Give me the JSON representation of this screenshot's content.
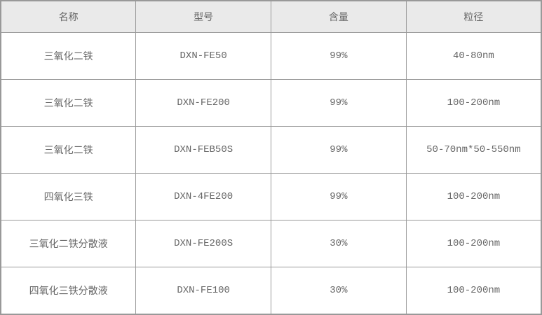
{
  "table": {
    "columns": [
      "名称",
      "型号",
      "含量",
      "粒径"
    ],
    "rows": [
      [
        "三氧化二铁",
        "DXN-FE50",
        "99%",
        "40-80nm"
      ],
      [
        "三氧化二铁",
        "DXN-FE200",
        "99%",
        "100-200nm"
      ],
      [
        "三氧化二铁",
        "DXN-FEB50S",
        "99%",
        "50-70nm*50-550nm"
      ],
      [
        "四氧化三铁",
        "DXN-4FE200",
        "99%",
        "100-200nm"
      ],
      [
        "三氧化二铁分散液",
        "DXN-FE200S",
        "30%",
        "100-200nm"
      ],
      [
        "四氧化三铁分散液",
        "DXN-FE100",
        "30%",
        "100-200nm"
      ]
    ],
    "colors": {
      "header_bg": "#eaeaea",
      "border": "#999999",
      "text": "#666666",
      "row_bg": "#ffffff"
    }
  }
}
